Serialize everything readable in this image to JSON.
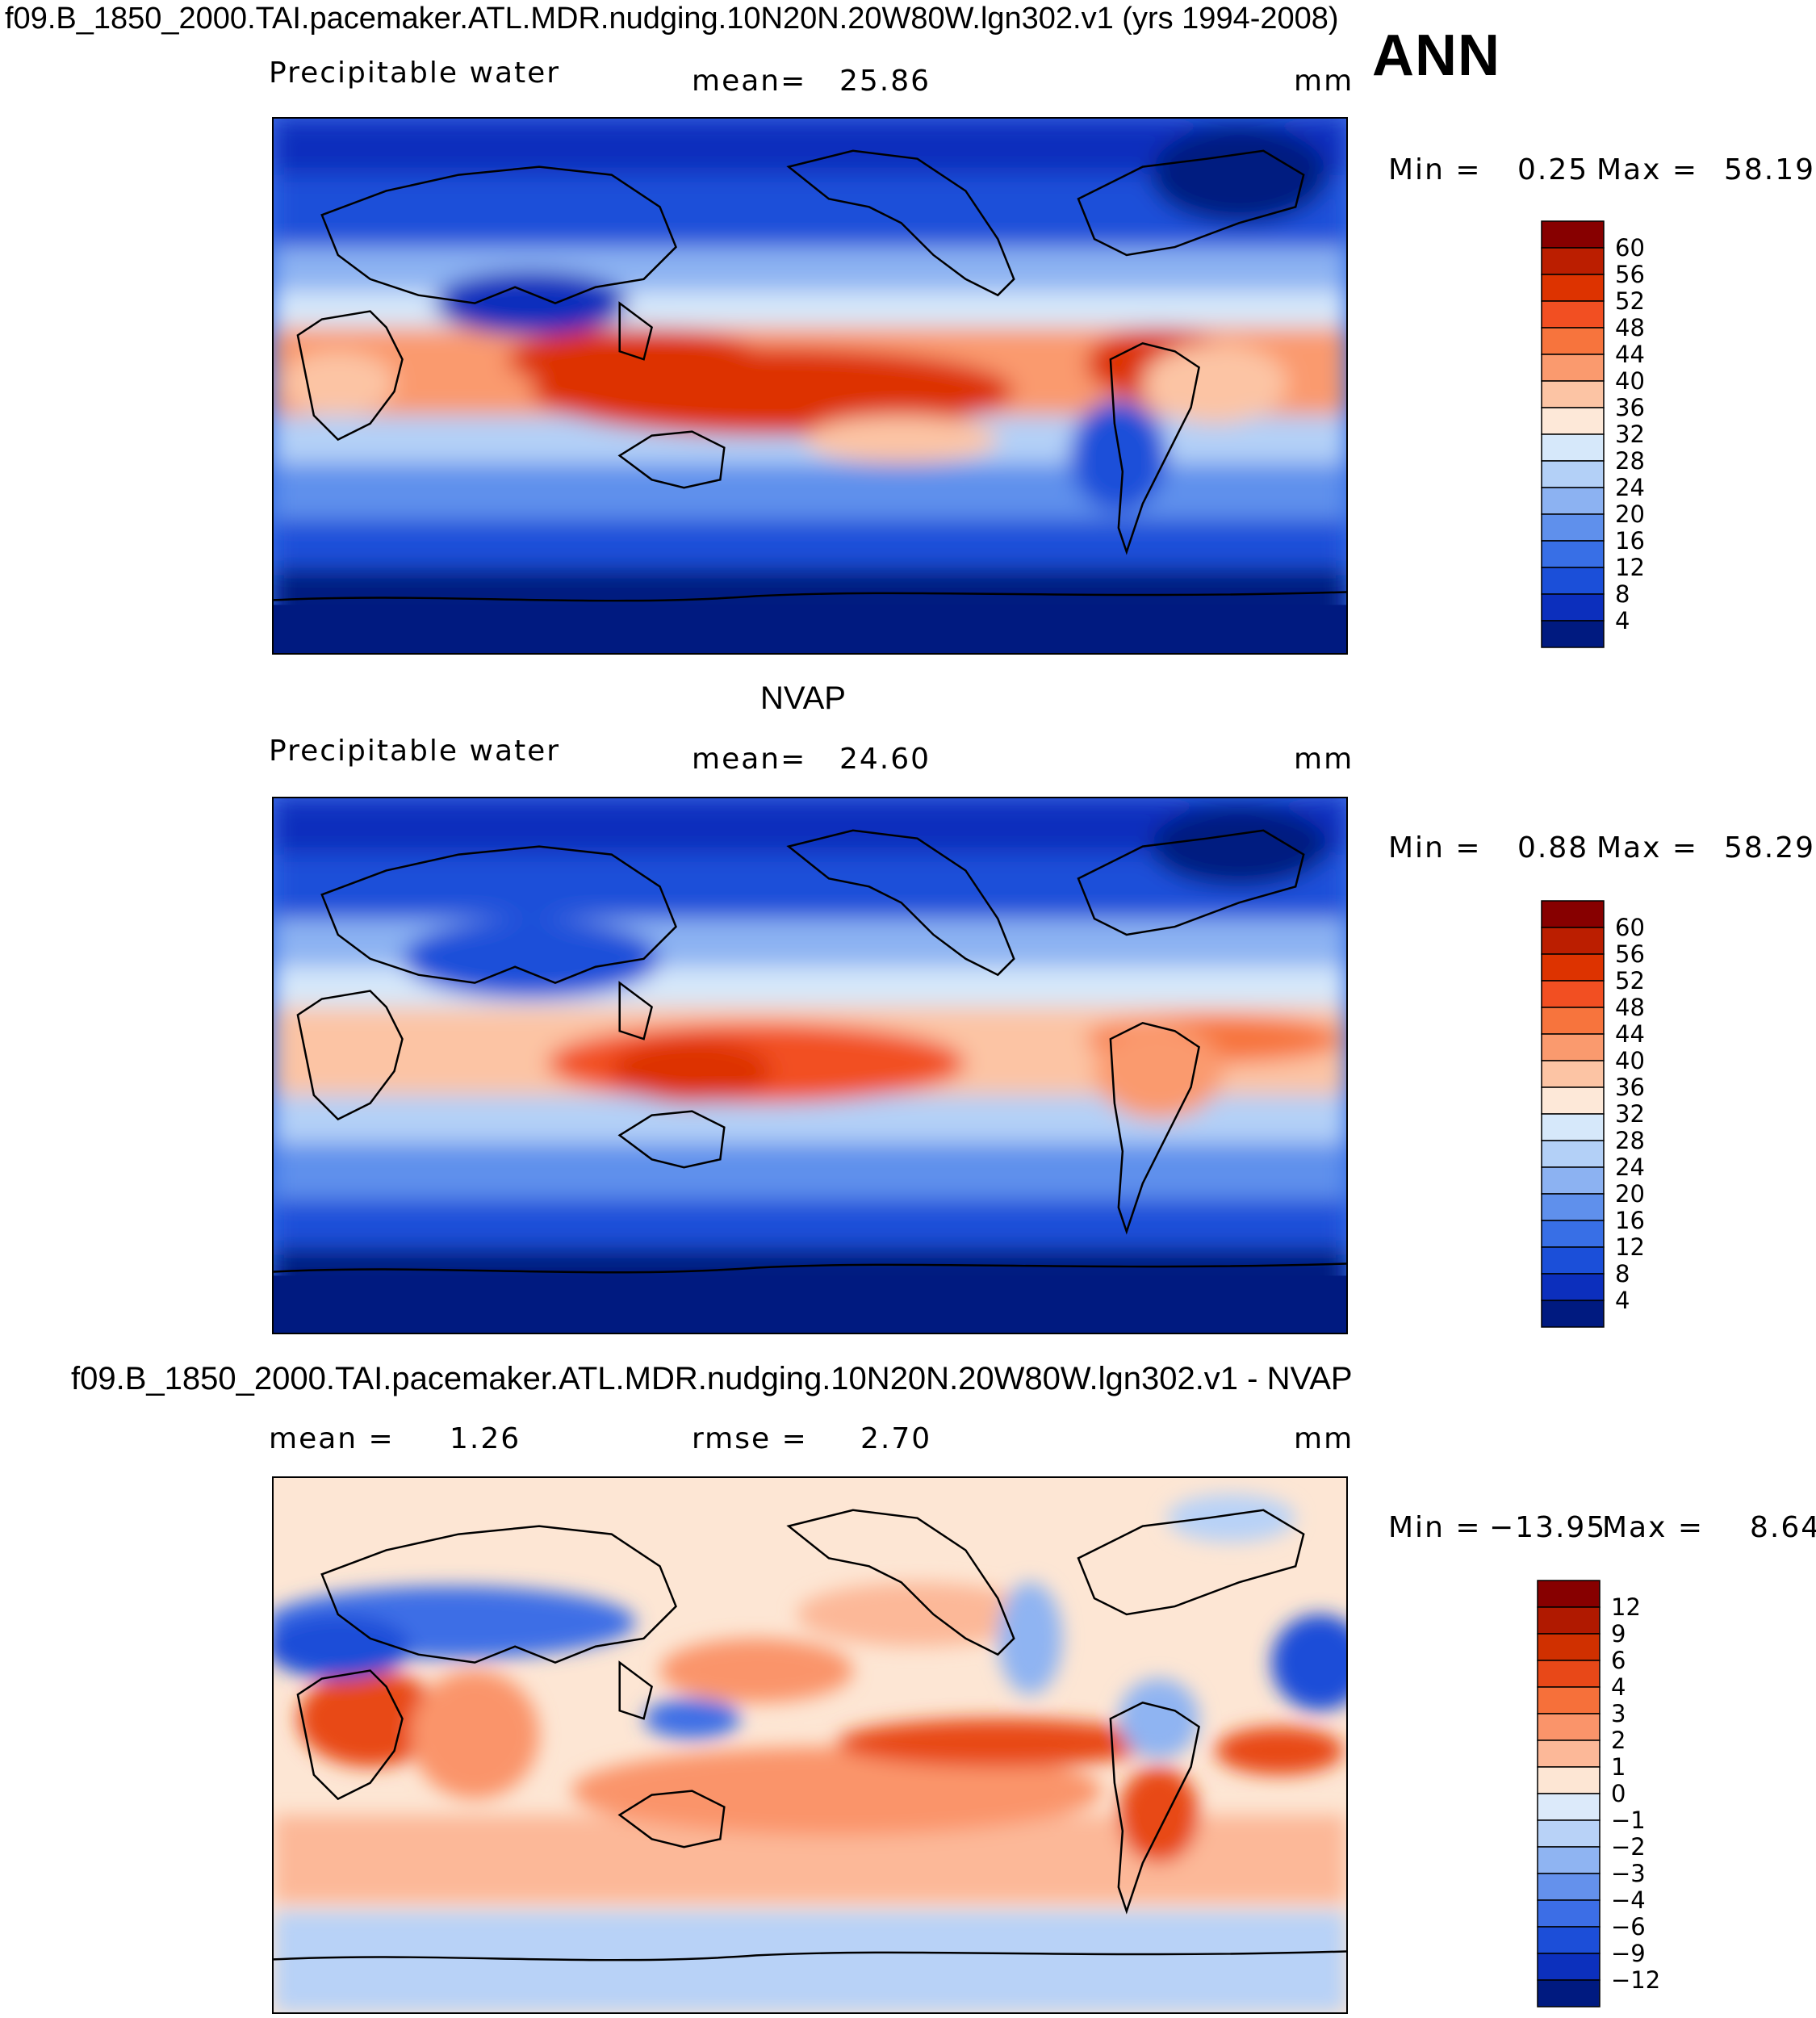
{
  "figure": {
    "title": "f09.B_1850_2000.TAI.pacemaker.ATL.MDR.nudging.10N20N.20W80W.lgn302.v1 (yrs 1994-2008)",
    "season": "ANN"
  },
  "chart_data": [
    {
      "type": "heatmap",
      "id": "model",
      "variable": "Precipitable water",
      "mean_label": "mean=",
      "mean": "25.86",
      "units": "mm",
      "min_label": "Min =",
      "min": "0.25",
      "max_label": "Max =",
      "max": "58.19",
      "colorbar_levels": [
        "60",
        "56",
        "52",
        "48",
        "44",
        "40",
        "36",
        "32",
        "28",
        "24",
        "20",
        "16",
        "12",
        "8",
        "4"
      ],
      "colorbar_colors": [
        "#870000",
        "#bb1e00",
        "#dd3300",
        "#f24f22",
        "#f7743d",
        "#fa9a6e",
        "#fcc4a4",
        "#fde8d8",
        "#d6e8fa",
        "#b3d0f7",
        "#8cb2f2",
        "#5f90ec",
        "#386fe6",
        "#1b4fd9",
        "#0c2fbd",
        "#001a80"
      ]
    },
    {
      "type": "heatmap",
      "id": "obs",
      "panel_title": "NVAP",
      "variable": "Precipitable water",
      "mean_label": "mean=",
      "mean": "24.60",
      "units": "mm",
      "min_label": "Min =",
      "min": "0.88",
      "max_label": "Max =",
      "max": "58.29",
      "colorbar_levels": [
        "60",
        "56",
        "52",
        "48",
        "44",
        "40",
        "36",
        "32",
        "28",
        "24",
        "20",
        "16",
        "12",
        "8",
        "4"
      ],
      "colorbar_colors": [
        "#870000",
        "#bb1e00",
        "#dd3300",
        "#f24f22",
        "#f7743d",
        "#fa9a6e",
        "#fcc4a4",
        "#fde8d8",
        "#d6e8fa",
        "#b3d0f7",
        "#8cb2f2",
        "#5f90ec",
        "#386fe6",
        "#1b4fd9",
        "#0c2fbd",
        "#001a80"
      ]
    },
    {
      "type": "heatmap",
      "id": "diff",
      "panel_title": "f09.B_1850_2000.TAI.pacemaker.ATL.MDR.nudging.10N20N.20W80W.lgn302.v1 - NVAP",
      "mean_label": "mean =",
      "mean": "1.26",
      "rmse_label": "rmse =",
      "rmse": "2.70",
      "units": "mm",
      "min_label": "Min =",
      "min": "−13.95",
      "max_label": "Max =",
      "max": "8.64",
      "colorbar_levels": [
        "12",
        "9",
        "6",
        "4",
        "3",
        "2",
        "1",
        "0",
        "−1",
        "−2",
        "−3",
        "−4",
        "−6",
        "−9",
        "−12"
      ],
      "colorbar_colors": [
        "#870000",
        "#b01900",
        "#d03000",
        "#e84818",
        "#f6703a",
        "#fa946a",
        "#fcb898",
        "#fde6d4",
        "#dceafa",
        "#b8d2f7",
        "#8fb4f2",
        "#6491ec",
        "#3c6ee6",
        "#1c4ed8",
        "#0c30bd",
        "#001a80"
      ]
    }
  ]
}
